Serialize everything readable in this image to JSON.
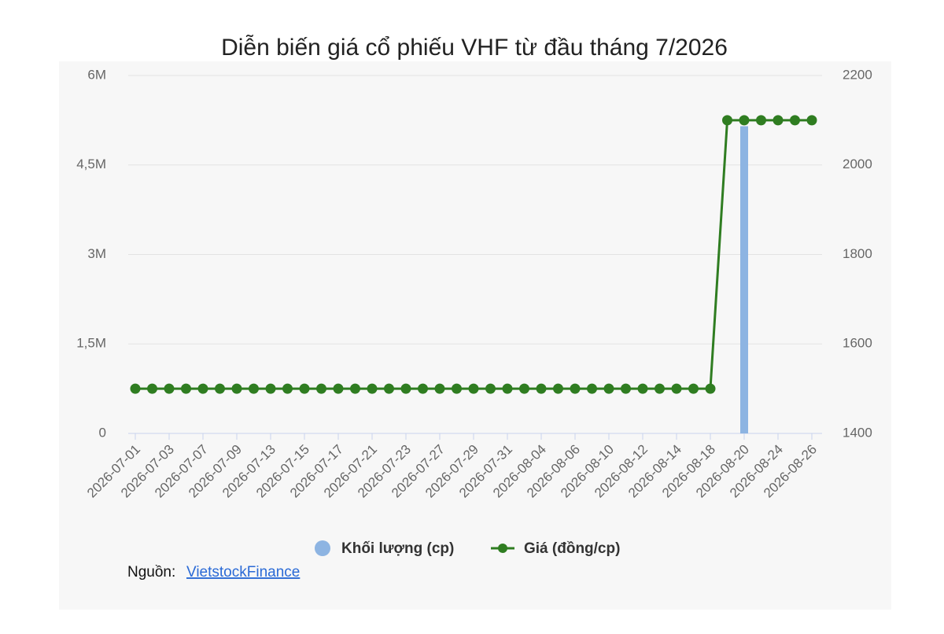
{
  "chart_data": {
    "type": "bar-line",
    "title": "Diễn biến giá cổ phiếu VHF từ đầu tháng 7/2026",
    "categories": [
      "2026-07-01",
      null,
      "2026-07-03",
      null,
      "2026-07-07",
      null,
      "2026-07-09",
      null,
      "2026-07-13",
      null,
      "2026-07-15",
      null,
      "2026-07-17",
      null,
      "2026-07-21",
      null,
      "2026-07-23",
      null,
      "2026-07-27",
      null,
      "2026-07-29",
      null,
      "2026-07-31",
      null,
      "2026-08-04",
      null,
      "2026-08-06",
      null,
      "2026-08-10",
      null,
      "2026-08-12",
      null,
      "2026-08-14",
      null,
      "2026-08-18",
      null,
      "2026-08-20",
      null,
      "2026-08-24",
      null,
      "2026-08-26"
    ],
    "series": [
      {
        "name": "Khối lượng (cp)",
        "type": "bar",
        "color": "#8db4e2",
        "values": [
          0,
          0,
          0,
          0,
          0,
          0,
          0,
          0,
          0,
          0,
          0,
          0,
          0,
          0,
          0,
          0,
          0,
          0,
          0,
          0,
          0,
          0,
          0,
          0,
          0,
          0,
          0,
          0,
          0,
          0,
          0,
          0,
          0,
          0,
          0,
          0,
          5150000,
          0,
          0,
          0,
          0
        ]
      },
      {
        "name": "Giá (đồng/cp)",
        "type": "line",
        "axis": "y2",
        "color": "#2f7d21",
        "values": [
          1500,
          1500,
          1500,
          1500,
          1500,
          1500,
          1500,
          1500,
          1500,
          1500,
          1500,
          1500,
          1500,
          1500,
          1500,
          1500,
          1500,
          1500,
          1500,
          1500,
          1500,
          1500,
          1500,
          1500,
          1500,
          1500,
          1500,
          1500,
          1500,
          1500,
          1500,
          1500,
          1500,
          1500,
          1500,
          2100,
          2100,
          2100,
          2100,
          2100,
          2100
        ]
      }
    ],
    "ylim": [
      0,
      6000000
    ],
    "yticks": [
      0,
      {
        "value": 1500000,
        "label": "1,5M"
      },
      {
        "value": 3000000,
        "label": "3M"
      },
      {
        "value": 4500000,
        "label": "4,5M"
      },
      {
        "value": 6000000,
        "label": "6M"
      }
    ],
    "y2lim": [
      1400,
      2200
    ],
    "y2ticks": [
      1400,
      1600,
      1800,
      2000,
      2200
    ],
    "grid": true
  },
  "source": {
    "label": "Nguồn:",
    "link": "VietstockFinance"
  }
}
